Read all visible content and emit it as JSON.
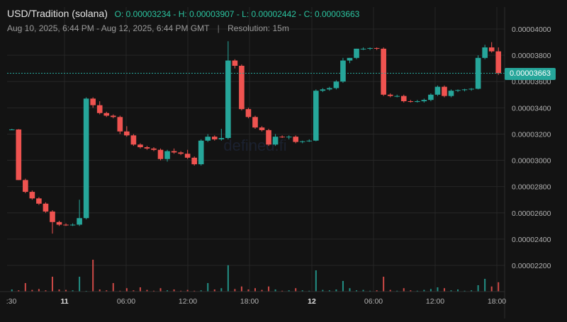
{
  "header": {
    "pair": "USD/Tradition (solana)",
    "ohlc": {
      "o_label": "O:",
      "o": "0.00003234",
      "h_label": "H:",
      "h": "0.00003907",
      "l_label": "L:",
      "l": "0.00002442",
      "c_label": "C:",
      "c": "0.00003663"
    },
    "range": "Aug 10, 2025, 6:44 PM - Aug 12, 2025, 6:44 PM GMT",
    "separator": "|",
    "resolution": "Resolution: 15m"
  },
  "watermark": "defined.fi",
  "last_price_label": "0.00003663",
  "colors": {
    "background": "#131313",
    "grid": "#262626",
    "up": "#26a69a",
    "down": "#ef5350",
    "axis_text": "#b2b2b2"
  },
  "chart_data": {
    "type": "candlestick",
    "y_ticks": [
      "0.00002200",
      "0.00002400",
      "0.00002600",
      "0.00002800",
      "0.00003000",
      "0.00003200",
      "0.00003400",
      "0.00003600",
      "0.00003800",
      "0.00004000"
    ],
    "x_ticks": [
      ":30",
      "11",
      "06:00",
      "12:00",
      "18:00",
      "12",
      "06:00",
      "12:00",
      "18:00"
    ],
    "ylim": [
      2e-05,
      4.2e-05
    ],
    "last_price": 3.663e-05,
    "candles": [
      {
        "o": 3.234e-05,
        "h": 3.24e-05,
        "l": 3.23e-05,
        "c": 3.235e-05
      },
      {
        "o": 3.235e-05,
        "h": 3.238e-05,
        "l": 2.85e-05,
        "c": 2.85e-05
      },
      {
        "o": 2.85e-05,
        "h": 2.86e-05,
        "l": 2.75e-05,
        "c": 2.76e-05
      },
      {
        "o": 2.76e-05,
        "h": 2.77e-05,
        "l": 2.7e-05,
        "c": 2.71e-05
      },
      {
        "o": 2.71e-05,
        "h": 2.72e-05,
        "l": 2.66e-05,
        "c": 2.67e-05
      },
      {
        "o": 2.67e-05,
        "h": 2.68e-05,
        "l": 2.6e-05,
        "c": 2.61e-05
      },
      {
        "o": 2.61e-05,
        "h": 2.62e-05,
        "l": 2.442e-05,
        "c": 2.53e-05
      },
      {
        "o": 2.53e-05,
        "h": 2.54e-05,
        "l": 2.5e-05,
        "c": 2.51e-05
      },
      {
        "o": 2.51e-05,
        "h": 2.52e-05,
        "l": 2.5e-05,
        "c": 2.505e-05
      },
      {
        "o": 2.505e-05,
        "h": 2.52e-05,
        "l": 2.5e-05,
        "c": 2.51e-05
      },
      {
        "o": 2.51e-05,
        "h": 2.7e-05,
        "l": 2.5e-05,
        "c": 2.56e-05
      },
      {
        "o": 2.56e-05,
        "h": 3.48e-05,
        "l": 2.55e-05,
        "c": 3.47e-05
      },
      {
        "o": 3.47e-05,
        "h": 3.48e-05,
        "l": 3.4e-05,
        "c": 3.42e-05
      },
      {
        "o": 3.42e-05,
        "h": 3.45e-05,
        "l": 3.35e-05,
        "c": 3.36e-05
      },
      {
        "o": 3.36e-05,
        "h": 3.37e-05,
        "l": 3.33e-05,
        "c": 3.34e-05
      },
      {
        "o": 3.34e-05,
        "h": 3.35e-05,
        "l": 3.32e-05,
        "c": 3.33e-05
      },
      {
        "o": 3.33e-05,
        "h": 3.34e-05,
        "l": 3.2e-05,
        "c": 3.22e-05
      },
      {
        "o": 3.22e-05,
        "h": 3.26e-05,
        "l": 3.18e-05,
        "c": 3.19e-05
      },
      {
        "o": 3.19e-05,
        "h": 3.2e-05,
        "l": 3.11e-05,
        "c": 3.12e-05
      },
      {
        "o": 3.12e-05,
        "h": 3.13e-05,
        "l": 3.09e-05,
        "c": 3.1e-05
      },
      {
        "o": 3.1e-05,
        "h": 3.11e-05,
        "l": 3.08e-05,
        "c": 3.09e-05
      },
      {
        "o": 3.09e-05,
        "h": 3.1e-05,
        "l": 3.07e-05,
        "c": 3.08e-05
      },
      {
        "o": 3.08e-05,
        "h": 3.09e-05,
        "l": 3e-05,
        "c": 3.01e-05
      },
      {
        "o": 3.01e-05,
        "h": 3.08e-05,
        "l": 2.99e-05,
        "c": 3.07e-05
      },
      {
        "o": 3.07e-05,
        "h": 3.09e-05,
        "l": 3.05e-05,
        "c": 3.06e-05
      },
      {
        "o": 3.06e-05,
        "h": 3.07e-05,
        "l": 3.04e-05,
        "c": 3.05e-05
      },
      {
        "o": 3.05e-05,
        "h": 3.08e-05,
        "l": 3.01e-05,
        "c": 3.02e-05
      },
      {
        "o": 3.02e-05,
        "h": 3.03e-05,
        "l": 2.96e-05,
        "c": 2.97e-05
      },
      {
        "o": 2.97e-05,
        "h": 3.16e-05,
        "l": 2.96e-05,
        "c": 3.15e-05
      },
      {
        "o": 3.15e-05,
        "h": 3.2e-05,
        "l": 3.14e-05,
        "c": 3.18e-05
      },
      {
        "o": 3.18e-05,
        "h": 3.19e-05,
        "l": 3.15e-05,
        "c": 3.16e-05
      },
      {
        "o": 3.16e-05,
        "h": 3.24e-05,
        "l": 3.15e-05,
        "c": 3.17e-05
      },
      {
        "o": 3.17e-05,
        "h": 3.907e-05,
        "l": 3.16e-05,
        "c": 3.76e-05
      },
      {
        "o": 3.76e-05,
        "h": 3.77e-05,
        "l": 3.7e-05,
        "c": 3.72e-05
      },
      {
        "o": 3.72e-05,
        "h": 3.73e-05,
        "l": 3.38e-05,
        "c": 3.39e-05
      },
      {
        "o": 3.39e-05,
        "h": 3.4e-05,
        "l": 3.32e-05,
        "c": 3.33e-05
      },
      {
        "o": 3.33e-05,
        "h": 3.34e-05,
        "l": 3.24e-05,
        "c": 3.25e-05
      },
      {
        "o": 3.25e-05,
        "h": 3.26e-05,
        "l": 3.22e-05,
        "c": 3.23e-05
      },
      {
        "o": 3.23e-05,
        "h": 3.24e-05,
        "l": 3.11e-05,
        "c": 3.12e-05
      },
      {
        "o": 3.12e-05,
        "h": 3.2e-05,
        "l": 3.11e-05,
        "c": 3.18e-05
      },
      {
        "o": 3.18e-05,
        "h": 3.19e-05,
        "l": 3.17e-05,
        "c": 3.175e-05
      },
      {
        "o": 3.175e-05,
        "h": 3.19e-05,
        "l": 3.16e-05,
        "c": 3.18e-05
      },
      {
        "o": 3.18e-05,
        "h": 3.19e-05,
        "l": 3.13e-05,
        "c": 3.14e-05
      },
      {
        "o": 3.14e-05,
        "h": 3.15e-05,
        "l": 3.13e-05,
        "c": 3.145e-05
      },
      {
        "o": 3.145e-05,
        "h": 3.16e-05,
        "l": 3.14e-05,
        "c": 3.15e-05
      },
      {
        "o": 3.15e-05,
        "h": 3.54e-05,
        "l": 3.145e-05,
        "c": 3.53e-05
      },
      {
        "o": 3.53e-05,
        "h": 3.55e-05,
        "l": 3.52e-05,
        "c": 3.54e-05
      },
      {
        "o": 3.54e-05,
        "h": 3.56e-05,
        "l": 3.53e-05,
        "c": 3.55e-05
      },
      {
        "o": 3.55e-05,
        "h": 3.61e-05,
        "l": 3.54e-05,
        "c": 3.6e-05
      },
      {
        "o": 3.6e-05,
        "h": 3.78e-05,
        "l": 3.59e-05,
        "c": 3.76e-05
      },
      {
        "o": 3.76e-05,
        "h": 3.78e-05,
        "l": 3.74e-05,
        "c": 3.78e-05
      },
      {
        "o": 3.78e-05,
        "h": 3.85e-05,
        "l": 3.77e-05,
        "c": 3.85e-05
      },
      {
        "o": 3.85e-05,
        "h": 3.86e-05,
        "l": 3.84e-05,
        "c": 3.85e-05
      },
      {
        "o": 3.85e-05,
        "h": 3.86e-05,
        "l": 3.84e-05,
        "c": 3.855e-05
      },
      {
        "o": 3.855e-05,
        "h": 3.86e-05,
        "l": 3.84e-05,
        "c": 3.85e-05
      },
      {
        "o": 3.85e-05,
        "h": 3.86e-05,
        "l": 3.49e-05,
        "c": 3.5e-05
      },
      {
        "o": 3.5e-05,
        "h": 3.51e-05,
        "l": 3.48e-05,
        "c": 3.49e-05
      },
      {
        "o": 3.49e-05,
        "h": 3.5e-05,
        "l": 3.48e-05,
        "c": 3.49e-05
      },
      {
        "o": 3.49e-05,
        "h": 3.5e-05,
        "l": 3.44e-05,
        "c": 3.45e-05
      },
      {
        "o": 3.45e-05,
        "h": 3.46e-05,
        "l": 3.44e-05,
        "c": 3.445e-05
      },
      {
        "o": 3.445e-05,
        "h": 3.46e-05,
        "l": 3.44e-05,
        "c": 3.45e-05
      },
      {
        "o": 3.45e-05,
        "h": 3.47e-05,
        "l": 3.44e-05,
        "c": 3.46e-05
      },
      {
        "o": 3.46e-05,
        "h": 3.51e-05,
        "l": 3.45e-05,
        "c": 3.5e-05
      },
      {
        "o": 3.5e-05,
        "h": 3.57e-05,
        "l": 3.49e-05,
        "c": 3.56e-05
      },
      {
        "o": 3.56e-05,
        "h": 3.57e-05,
        "l": 3.48e-05,
        "c": 3.49e-05
      },
      {
        "o": 3.49e-05,
        "h": 3.54e-05,
        "l": 3.48e-05,
        "c": 3.53e-05
      },
      {
        "o": 3.53e-05,
        "h": 3.54e-05,
        "l": 3.52e-05,
        "c": 3.535e-05
      },
      {
        "o": 3.535e-05,
        "h": 3.545e-05,
        "l": 3.525e-05,
        "c": 3.54e-05
      },
      {
        "o": 3.54e-05,
        "h": 3.55e-05,
        "l": 3.53e-05,
        "c": 3.545e-05
      },
      {
        "o": 3.545e-05,
        "h": 3.8e-05,
        "l": 3.54e-05,
        "c": 3.78e-05
      },
      {
        "o": 3.78e-05,
        "h": 3.88e-05,
        "l": 3.77e-05,
        "c": 3.86e-05
      },
      {
        "o": 3.86e-05,
        "h": 3.9e-05,
        "l": 3.82e-05,
        "c": 3.83e-05
      },
      {
        "o": 3.83e-05,
        "h": 3.86e-05,
        "l": 3.65e-05,
        "c": 3.663e-05
      }
    ],
    "volumes": [
      0.05,
      0.03,
      0.2,
      0.04,
      0.06,
      0.03,
      0.35,
      0.05,
      0.04,
      0.03,
      0.35,
      0.01,
      0.75,
      0.05,
      0.03,
      0.2,
      0.02,
      0.08,
      0.03,
      0.1,
      0.04,
      0.02,
      0.08,
      0.03,
      0.05,
      0.02,
      0.04,
      0.02,
      0.03,
      0.2,
      0.05,
      0.08,
      0.62,
      0.06,
      0.12,
      0.05,
      0.08,
      0.04,
      0.12,
      0.05,
      0.02,
      0.03,
      0.08,
      0.03,
      0.02,
      0.5,
      0.04,
      0.03,
      0.05,
      0.25,
      0.08,
      0.03,
      0.04,
      0.02,
      0.03,
      0.35,
      0.04,
      0.02,
      0.08,
      0.03,
      0.02,
      0.04,
      0.06,
      0.1,
      0.08,
      0.03,
      0.05,
      0.02,
      0.03,
      0.15,
      0.3,
      0.12,
      0.22
    ]
  }
}
